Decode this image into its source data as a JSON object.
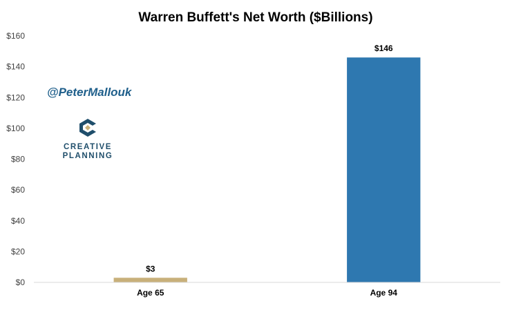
{
  "chart_data": {
    "type": "bar",
    "title": "Warren Buffett's Net Worth ($Billions)",
    "xlabel": "",
    "ylabel": "",
    "categories": [
      "Age 65",
      "Age 94"
    ],
    "values": [
      3,
      146
    ],
    "data_labels": [
      "$3",
      "$146"
    ],
    "bar_colors": [
      "#c8b07a",
      "#2e78b0"
    ],
    "ylim": [
      0,
      160
    ],
    "y_ticks": [
      0,
      20,
      40,
      60,
      80,
      100,
      120,
      140,
      160
    ],
    "y_tick_labels": [
      "$0",
      "$20",
      "$40",
      "$60",
      "$80",
      "$100",
      "$120",
      "$140",
      "$160"
    ],
    "grid": false,
    "legend": "none"
  },
  "branding": {
    "handle": "@PeterMallouk",
    "logo_line1": "CREATIVE",
    "logo_line2": "PLANNING",
    "logo_colors": {
      "navy": "#1f4e6b",
      "tan": "#c8b07a"
    }
  }
}
